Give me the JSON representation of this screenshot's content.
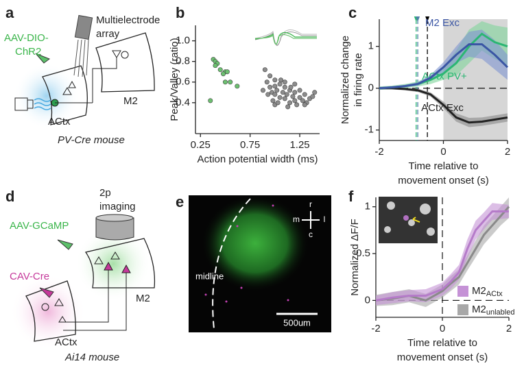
{
  "panel_labels": [
    "a",
    "b",
    "c",
    "d",
    "e",
    "f"
  ],
  "diagram_a": {
    "virus": [
      "AAV-DIO-",
      "ChR2"
    ],
    "array": [
      "Multielectrode",
      "array"
    ],
    "target": "M2",
    "source": "ACtx",
    "mouse": "PV-Cre mouse"
  },
  "diagram_d": {
    "imaging": [
      "2p",
      "imaging"
    ],
    "virus_1": "AAV-GCaMP",
    "virus_2": "CAV-Cre",
    "target": "M2",
    "source": "ACtx",
    "mouse": "Ai14 mouse"
  },
  "image_e": {
    "midline": "midline",
    "scale_bar": "500um",
    "compass": {
      "r": "r",
      "m": "m",
      "l": "l",
      "c": "c"
    }
  },
  "chart_data": [
    {
      "type": "scatter",
      "x_label": "Action potential width (ms)",
      "y_label": "Peak/Valley (ratio)",
      "xlim": [
        0.2,
        1.45
      ],
      "ylim": [
        0.1,
        1.15
      ],
      "xticks": [
        0.25,
        0.75,
        1.25
      ],
      "yticks": [
        0.4,
        0.6,
        0.8,
        {
          "value": 1,
          "label": "1.0"
        }
      ],
      "series": [
        {
          "color": "#6cc070",
          "x": [
            0.38,
            0.4,
            0.42,
            0.4,
            0.45,
            0.5,
            0.52,
            0.48,
            0.55,
            0.62,
            0.35,
            0.5
          ],
          "values": [
            0.82,
            0.8,
            0.78,
            0.76,
            0.72,
            0.7,
            0.7,
            0.68,
            0.6,
            0.56,
            0.42,
            0.6
          ]
        },
        {
          "color": "#8c8c8c",
          "x": [
            0.9,
            0.92,
            0.95,
            0.97,
            1.0,
            1.0,
            1.02,
            1.05,
            1.05,
            1.08,
            1.1,
            1.1,
            1.12,
            1.15,
            1.15,
            1.18,
            1.2,
            1.2,
            1.22,
            1.25,
            1.28,
            1.3,
            1.32,
            1.35,
            1.38,
            1.4,
            0.95,
            0.98,
            1.0,
            1.03,
            1.06,
            1.1,
            1.13,
            1.16,
            1.2,
            1.25,
            1.3,
            0.88,
            0.93,
            1.0
          ],
          "values": [
            0.72,
            0.6,
            0.55,
            0.5,
            0.48,
            0.62,
            0.52,
            0.45,
            0.58,
            0.5,
            0.44,
            0.55,
            0.48,
            0.4,
            0.52,
            0.46,
            0.42,
            0.5,
            0.38,
            0.45,
            0.42,
            0.48,
            0.4,
            0.44,
            0.46,
            0.5,
            0.66,
            0.42,
            0.38,
            0.4,
            0.62,
            0.6,
            0.36,
            0.55,
            0.58,
            0.52,
            0.38,
            0.52,
            0.48,
            0.56
          ]
        }
      ]
    },
    {
      "type": "line",
      "x_label": [
        "Time relative to",
        "movement onset (s)"
      ],
      "y_label": [
        "Normalized change",
        "in firing rate"
      ],
      "xlim": [
        -2,
        2
      ],
      "ylim": [
        -1.25,
        1.65
      ],
      "xticks": [
        -2,
        0,
        2
      ],
      "yticks": [
        -1,
        0,
        1
      ],
      "hline": 0,
      "shaded_region": [
        0,
        2
      ],
      "markers": [
        {
          "x": -0.85,
          "color": "#2bb673"
        },
        {
          "x": -0.8,
          "color": "#4f7fa8"
        },
        {
          "x": -0.5,
          "color": "#000000"
        }
      ],
      "x": [
        -2,
        -1.6,
        -1.2,
        -0.8,
        -0.4,
        0,
        0.4,
        0.8,
        1.2,
        1.6,
        2
      ],
      "series": [
        {
          "name": "ACtx Exc",
          "color": "#222222",
          "band_color": "#888888",
          "values": [
            0,
            0,
            -0.02,
            -0.05,
            -0.15,
            -0.4,
            -0.7,
            -0.82,
            -0.8,
            -0.75,
            -0.7
          ],
          "lower": [
            -0.03,
            -0.03,
            -0.05,
            -0.09,
            -0.2,
            -0.48,
            -0.8,
            -0.93,
            -0.9,
            -0.85,
            -0.8
          ],
          "upper": [
            0.03,
            0.03,
            0.01,
            -0.01,
            -0.1,
            -0.32,
            -0.6,
            -0.71,
            -0.7,
            -0.65,
            -0.6
          ]
        },
        {
          "name": "ACtx PV+",
          "color": "#2bb673",
          "band_color": "#7fd39a",
          "values": [
            0,
            0.02,
            0.05,
            0.1,
            0.2,
            0.35,
            0.6,
            1.0,
            1.3,
            1.1,
            1.0
          ],
          "lower": [
            -0.04,
            -0.02,
            0.0,
            0.04,
            0.1,
            0.2,
            0.3,
            0.6,
            0.9,
            0.7,
            0.55
          ],
          "upper": [
            0.04,
            0.06,
            0.1,
            0.16,
            0.3,
            0.5,
            0.9,
            1.4,
            1.6,
            1.5,
            1.45
          ]
        },
        {
          "name": "M2 Exc",
          "color": "#3a55a4",
          "band_color": "#7f95d0",
          "values": [
            0,
            0.02,
            0.05,
            0.1,
            0.25,
            0.5,
            0.8,
            1.05,
            1.05,
            0.8,
            0.5
          ],
          "lower": [
            -0.03,
            -0.01,
            0.02,
            0.06,
            0.18,
            0.38,
            0.6,
            0.75,
            0.7,
            0.45,
            0.2
          ],
          "upper": [
            0.03,
            0.05,
            0.08,
            0.14,
            0.32,
            0.62,
            1.0,
            1.35,
            1.4,
            1.15,
            0.8
          ]
        }
      ]
    },
    {
      "type": "line",
      "x_label": [
        "Time relative to",
        "movement onset (s)"
      ],
      "y_label": "Normalized ΔF/F",
      "xlim": [
        -2,
        2
      ],
      "ylim": [
        -0.18,
        1.1
      ],
      "xticks": [
        -2,
        0,
        2
      ],
      "yticks": [
        0,
        0.5,
        1
      ],
      "hline": 0,
      "vline": 0,
      "x": [
        -2,
        -1.5,
        -1,
        -0.5,
        0,
        0.25,
        0.5,
        0.75,
        1,
        1.25,
        1.5,
        1.75,
        2
      ],
      "series": [
        {
          "name": "M2",
          "subscript": "unlabled",
          "color": "#8a8a8a",
          "band_color": "#a8a8a8",
          "values": [
            0,
            0.02,
            0.05,
            0.0,
            0.1,
            0.18,
            0.25,
            0.4,
            0.55,
            0.7,
            0.8,
            0.9,
            1.0
          ],
          "lower": [
            -0.06,
            -0.05,
            -0.02,
            -0.07,
            0.03,
            0.1,
            0.17,
            0.32,
            0.46,
            0.6,
            0.7,
            0.8,
            0.88
          ],
          "upper": [
            0.06,
            0.09,
            0.12,
            0.07,
            0.17,
            0.26,
            0.33,
            0.48,
            0.64,
            0.8,
            0.9,
            1.0,
            1.1
          ]
        },
        {
          "name": "M2",
          "subscript": "ACtx",
          "color": "#b57bc9",
          "band_color": "#c592d6",
          "values": [
            0,
            0.03,
            0.05,
            0.05,
            0.12,
            0.2,
            0.3,
            0.55,
            0.75,
            0.85,
            0.95,
            0.95,
            0.95
          ],
          "lower": [
            -0.05,
            -0.03,
            -0.01,
            -0.02,
            0.05,
            0.12,
            0.22,
            0.45,
            0.65,
            0.76,
            0.86,
            0.87,
            0.88
          ],
          "upper": [
            0.05,
            0.09,
            0.11,
            0.12,
            0.19,
            0.28,
            0.38,
            0.65,
            0.85,
            0.94,
            1.04,
            1.03,
            1.02
          ]
        }
      ]
    }
  ]
}
